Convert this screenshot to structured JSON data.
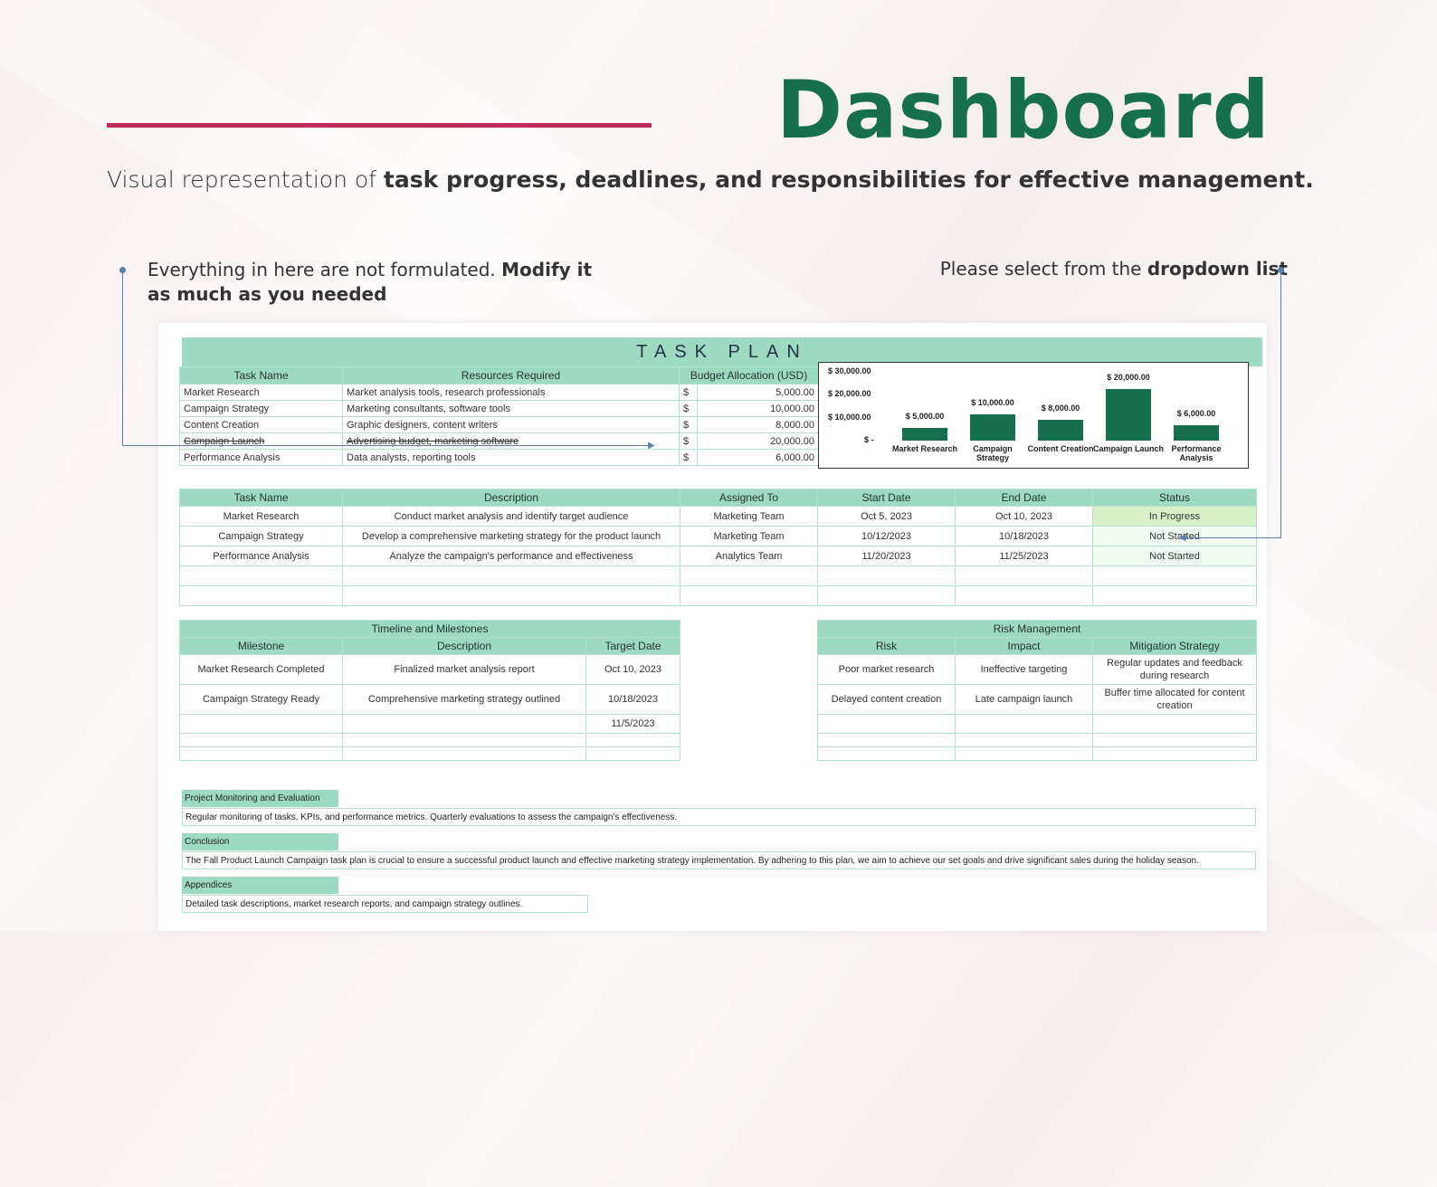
{
  "header": {
    "title": "Dashboard",
    "subtitle_plain": "Visual representation of ",
    "subtitle_bold": "task progress, deadlines, and responsibilities for effective management."
  },
  "notes": {
    "left_plain": "Everything in here are not formulated. ",
    "left_bold": "Modify it as much as you needed",
    "right_plain": "Please select from the ",
    "right_bold": "dropdown list"
  },
  "colors": {
    "brand_green": "#17704d",
    "accent_red": "#c0295a",
    "header_mint": "#9ddac2"
  },
  "sheet": {
    "banner": "TASK PLAN",
    "budget": {
      "headers": [
        "Task Name",
        "Resources Required",
        "Budget Allocation (USD)"
      ],
      "rows": [
        {
          "task": "Market Research",
          "resources": "Market analysis tools, research professionals",
          "cur": "$",
          "amount": "5,000.00"
        },
        {
          "task": "Campaign Strategy",
          "resources": "Marketing consultants, software tools",
          "cur": "$",
          "amount": "10,000.00"
        },
        {
          "task": "Content Creation",
          "resources": "Graphic designers, content writers",
          "cur": "$",
          "amount": "8,000.00"
        },
        {
          "task": "Campaign Launch",
          "resources": "Advertising budget, marketing software",
          "cur": "$",
          "amount": "20,000.00"
        },
        {
          "task": "Performance Analysis",
          "resources": "Data analysts, reporting tools",
          "cur": "$",
          "amount": "6,000.00"
        }
      ]
    },
    "schedule": {
      "headers": [
        "Task Name",
        "Description",
        "Assigned To",
        "Start Date",
        "End Date",
        "Status"
      ],
      "rows": [
        {
          "task": "Market Research",
          "desc": "Conduct market analysis and identify target audience",
          "who": "Marketing Team",
          "start": "Oct 5, 2023",
          "end": "Oct 10, 2023",
          "status": "In Progress"
        },
        {
          "task": "Campaign Strategy",
          "desc": "Develop a comprehensive marketing strategy for the product launch",
          "who": "Marketing Team",
          "start": "10/12/2023",
          "end": "10/18/2023",
          "status": "Not Started"
        },
        {
          "task": "Performance Analysis",
          "desc": "Analyze the campaign's performance and effectiveness",
          "who": "Analytics Team",
          "start": "11/20/2023",
          "end": "11/25/2023",
          "status": "Not Started"
        }
      ]
    },
    "timeline": {
      "title": "Timeline and Milestones",
      "headers": [
        "Milestone",
        "Description",
        "Target Date"
      ],
      "rows": [
        {
          "milestone": "Market Research Completed",
          "desc": "Finalized market analysis report",
          "date": "Oct 10, 2023"
        },
        {
          "milestone": "Campaign Strategy Ready",
          "desc": "Comprehensive marketing strategy outlined",
          "date": "10/18/2023"
        },
        {
          "milestone": "",
          "desc": "",
          "date": "11/5/2023"
        }
      ]
    },
    "risk": {
      "title": "Risk Management",
      "headers": [
        "Risk",
        "Impact",
        "Mitigation Strategy"
      ],
      "rows": [
        {
          "risk": "Poor market research",
          "impact": "Ineffective targeting",
          "mitigation": "Regular updates and feedback during research"
        },
        {
          "risk": "Delayed content creation",
          "impact": "Late campaign launch",
          "mitigation": "Buffer time allocated for content creation"
        }
      ]
    },
    "monitoring": {
      "label": "Project Monitoring and Evaluation",
      "text": "Regular monitoring of tasks, KPIs, and performance metrics. Quarterly evaluations to assess the campaign's effectiveness."
    },
    "conclusion": {
      "label": "Conclusion",
      "text": "The Fall Product Launch Campaign task plan is crucial to ensure a successful product launch and effective marketing strategy implementation. By adhering to this plan, we aim to achieve our set goals and drive significant sales during the holiday season."
    },
    "appendices": {
      "label": "Appendices",
      "text": "Detailed task descriptions, market research reports, and campaign strategy outlines."
    }
  },
  "chart_data": {
    "type": "bar",
    "categories": [
      "Market Research",
      "Campaign Strategy",
      "Content Creation",
      "Campaign Launch",
      "Performance Analysis"
    ],
    "values": [
      5000,
      10000,
      8000,
      20000,
      6000
    ],
    "data_labels": [
      "$ 5,000.00",
      "$ 10,000.00",
      "$ 8,000.00",
      "$ 20,000.00",
      "$ 6,000.00"
    ],
    "y_ticks": [
      "$ 30,000.00",
      "$ 20,000.00",
      "$ 10,000.00",
      "$ -"
    ],
    "ylim": [
      0,
      30000
    ],
    "grid": false,
    "title": "",
    "xlabel": "",
    "ylabel": ""
  }
}
